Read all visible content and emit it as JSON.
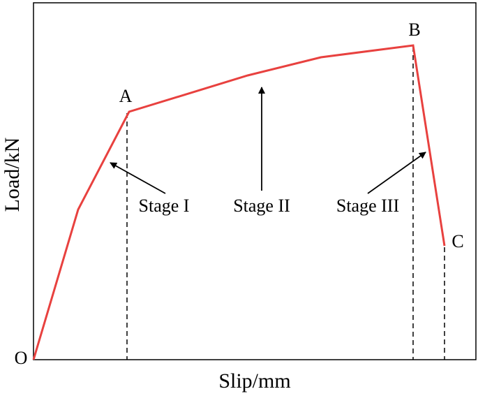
{
  "axes": {
    "x_label": "Slip/mm",
    "y_label": "Load/kN"
  },
  "points": {
    "origin": "O",
    "a": "A",
    "b": "B",
    "c": "C"
  },
  "stages": [
    "Stage I",
    "Stage II",
    "Stage III"
  ]
}
